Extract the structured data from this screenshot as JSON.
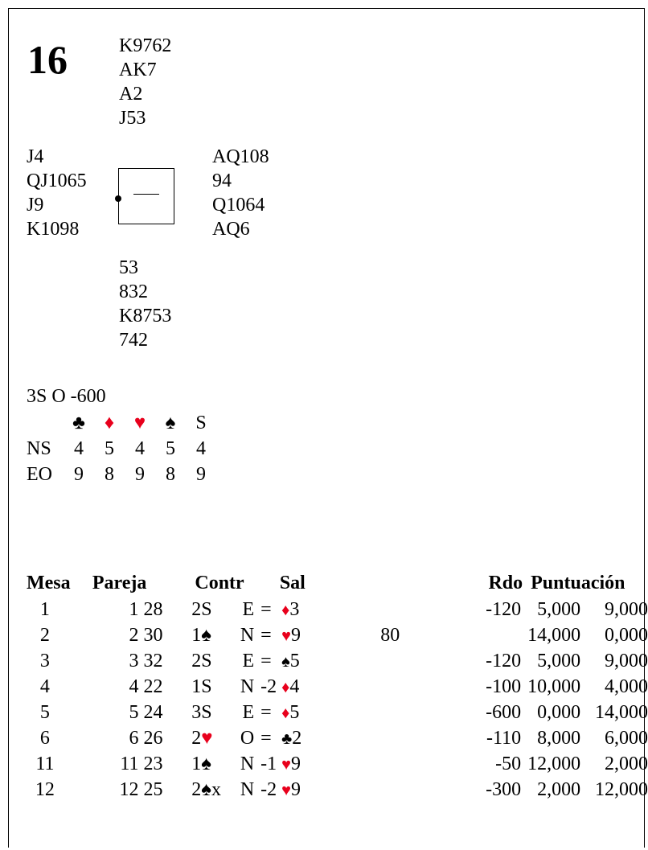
{
  "board": {
    "number": "16",
    "north": [
      "K9762",
      "AK7",
      "A2",
      "J53"
    ],
    "west": [
      "J4",
      "QJ1065",
      "J9",
      "K1098"
    ],
    "east": [
      "AQ108",
      "94",
      "Q1064",
      "AQ6"
    ],
    "south": [
      "53",
      "832",
      "K8753",
      "742"
    ],
    "compass_mark": "—"
  },
  "par": "3S O -600",
  "double_dummy": {
    "headers": [
      {
        "symbol": "♣",
        "color": "#000000"
      },
      {
        "symbol": "♦",
        "color": "#e8001c"
      },
      {
        "symbol": "♥",
        "color": "#e8001c"
      },
      {
        "symbol": "♠",
        "color": "#000000"
      },
      {
        "symbol": "S",
        "color": "#000000"
      }
    ],
    "rows": [
      {
        "label": "NS",
        "values": [
          "4",
          "5",
          "4",
          "5",
          "4"
        ]
      },
      {
        "label": "EO",
        "values": [
          "9",
          "8",
          "9",
          "8",
          "9"
        ]
      }
    ]
  },
  "results": {
    "headers": {
      "mesa": "Mesa",
      "pareja": "Pareja",
      "contr": "Contr",
      "sal": "Sal",
      "rdo": "Rdo",
      "puntuacion": "Puntuación"
    },
    "rows": [
      {
        "mesa": "1",
        "p1": "1",
        "p2": "28",
        "level": "2",
        "suit": "S",
        "suit_color": "#000000",
        "dbl": "",
        "decl": "E",
        "res": "=",
        "lead_suit": "♦",
        "lead_color": "#e8001c",
        "lead_card": "3",
        "rdo_ns": "",
        "rdo_eo": "-120",
        "score1": "5,000",
        "score2": "9,000"
      },
      {
        "mesa": "2",
        "p1": "2",
        "p2": "30",
        "level": "1",
        "suit": "♠",
        "suit_color": "#000000",
        "dbl": "",
        "decl": "N",
        "res": "=",
        "lead_suit": "♥",
        "lead_color": "#e8001c",
        "lead_card": "9",
        "rdo_ns": "80",
        "rdo_eo": "",
        "score1": "14,000",
        "score2": "0,000"
      },
      {
        "mesa": "3",
        "p1": "3",
        "p2": "32",
        "level": "2",
        "suit": "S",
        "suit_color": "#000000",
        "dbl": "",
        "decl": "E",
        "res": "=",
        "lead_suit": "♠",
        "lead_color": "#000000",
        "lead_card": "5",
        "rdo_ns": "",
        "rdo_eo": "-120",
        "score1": "5,000",
        "score2": "9,000"
      },
      {
        "mesa": "4",
        "p1": "4",
        "p2": "22",
        "level": "1",
        "suit": "S",
        "suit_color": "#000000",
        "dbl": "",
        "decl": "N",
        "res": "-2",
        "lead_suit": "♦",
        "lead_color": "#e8001c",
        "lead_card": "4",
        "rdo_ns": "",
        "rdo_eo": "-100",
        "score1": "10,000",
        "score2": "4,000"
      },
      {
        "mesa": "5",
        "p1": "5",
        "p2": "24",
        "level": "3",
        "suit": "S",
        "suit_color": "#000000",
        "dbl": "",
        "decl": "E",
        "res": "=",
        "lead_suit": "♦",
        "lead_color": "#e8001c",
        "lead_card": "5",
        "rdo_ns": "",
        "rdo_eo": "-600",
        "score1": "0,000",
        "score2": "14,000"
      },
      {
        "mesa": "6",
        "p1": "6",
        "p2": "26",
        "level": "2",
        "suit": "♥",
        "suit_color": "#e8001c",
        "dbl": "",
        "decl": "O",
        "res": "=",
        "lead_suit": "♣",
        "lead_color": "#000000",
        "lead_card": "2",
        "rdo_ns": "",
        "rdo_eo": "-110",
        "score1": "8,000",
        "score2": "6,000"
      },
      {
        "mesa": "11",
        "p1": "11",
        "p2": "23",
        "level": "1",
        "suit": "♠",
        "suit_color": "#000000",
        "dbl": "",
        "decl": "N",
        "res": "-1",
        "lead_suit": "♥",
        "lead_color": "#e8001c",
        "lead_card": "9",
        "rdo_ns": "",
        "rdo_eo": "-50",
        "score1": "12,000",
        "score2": "2,000"
      },
      {
        "mesa": "12",
        "p1": "12",
        "p2": "25",
        "level": "2",
        "suit": "♠",
        "suit_color": "#000000",
        "dbl": "x",
        "decl": "N",
        "res": "-2",
        "lead_suit": "♥",
        "lead_color": "#e8001c",
        "lead_card": "9",
        "rdo_ns": "",
        "rdo_eo": "-300",
        "score1": "2,000",
        "score2": "12,000"
      }
    ]
  }
}
